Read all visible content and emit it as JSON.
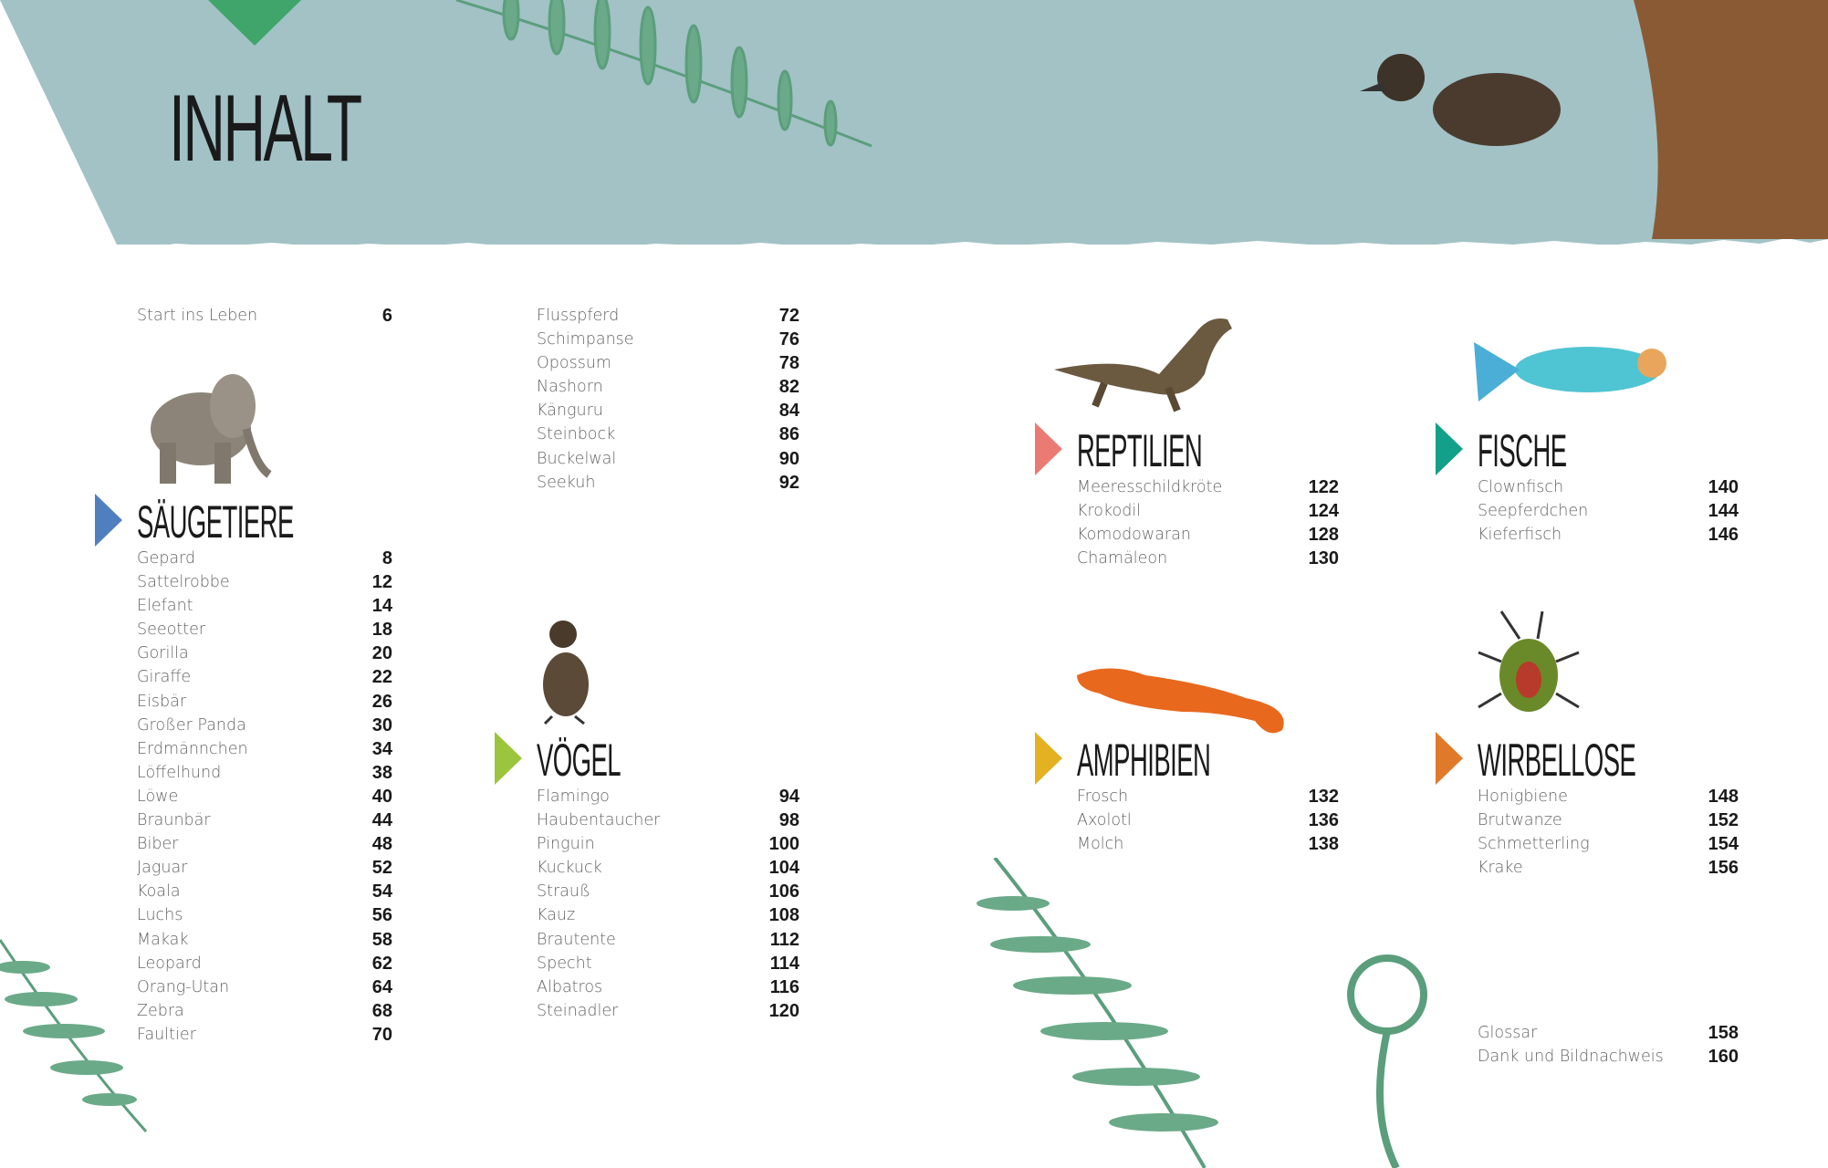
{
  "title": "INHALT",
  "colors": {
    "band": "#a2c2c6",
    "fern": "#5b9e7c",
    "saeugetiere": "#4f7fbf",
    "voegel": "#9bc53d",
    "reptilien": "#ec7a74",
    "fische": "#13a08a",
    "amphibien": "#e4b123",
    "wirbellose": "#e07a2a"
  },
  "intro": [
    {
      "label": "Start ins Leben",
      "page": "6"
    }
  ],
  "sections": {
    "saeugetiere": {
      "heading": "SÄUGETIERE",
      "items": [
        {
          "label": "Gepard",
          "page": "8"
        },
        {
          "label": "Sattelrobbe",
          "page": "12"
        },
        {
          "label": "Elefant",
          "page": "14"
        },
        {
          "label": "Seeotter",
          "page": "18"
        },
        {
          "label": "Gorilla",
          "page": "20"
        },
        {
          "label": "Giraffe",
          "page": "22"
        },
        {
          "label": "Eisbär",
          "page": "26"
        },
        {
          "label": "Großer Panda",
          "page": "30"
        },
        {
          "label": "Erdmännchen",
          "page": "34"
        },
        {
          "label": "Löffelhund",
          "page": "38"
        },
        {
          "label": "Löwe",
          "page": "40"
        },
        {
          "label": "Braunbär",
          "page": "44"
        },
        {
          "label": "Biber",
          "page": "48"
        },
        {
          "label": "Jaguar",
          "page": "52"
        },
        {
          "label": "Koala",
          "page": "54"
        },
        {
          "label": "Luchs",
          "page": "56"
        },
        {
          "label": "Makak",
          "page": "58"
        },
        {
          "label": "Leopard",
          "page": "62"
        },
        {
          "label": "Orang-Utan",
          "page": "64"
        },
        {
          "label": "Zebra",
          "page": "68"
        },
        {
          "label": "Faultier",
          "page": "70"
        }
      ]
    },
    "saeugetiere_cont": {
      "items": [
        {
          "label": "Flusspferd",
          "page": "72"
        },
        {
          "label": "Schimpanse",
          "page": "76"
        },
        {
          "label": "Opossum",
          "page": "78"
        },
        {
          "label": "Nashorn",
          "page": "82"
        },
        {
          "label": "Känguru",
          "page": "84"
        },
        {
          "label": "Steinbock",
          "page": "86"
        },
        {
          "label": "Buckelwal",
          "page": "90"
        },
        {
          "label": "Seekuh",
          "page": "92"
        }
      ]
    },
    "voegel": {
      "heading": "VÖGEL",
      "items": [
        {
          "label": "Flamingo",
          "page": "94"
        },
        {
          "label": "Haubentaucher",
          "page": "98"
        },
        {
          "label": "Pinguin",
          "page": "100"
        },
        {
          "label": "Kuckuck",
          "page": "104"
        },
        {
          "label": "Strauß",
          "page": "106"
        },
        {
          "label": "Kauz",
          "page": "108"
        },
        {
          "label": "Brautente",
          "page": "112"
        },
        {
          "label": "Specht",
          "page": "114"
        },
        {
          "label": "Albatros",
          "page": "116"
        },
        {
          "label": "Steinadler",
          "page": "120"
        }
      ]
    },
    "reptilien": {
      "heading": "REPTILIEN",
      "items": [
        {
          "label": "Meeresschildkröte",
          "page": "122"
        },
        {
          "label": "Krokodil",
          "page": "124"
        },
        {
          "label": "Komodowaran",
          "page": "128"
        },
        {
          "label": "Chamäleon",
          "page": "130"
        }
      ]
    },
    "fische": {
      "heading": "FISCHE",
      "items": [
        {
          "label": "Clownfisch",
          "page": "140"
        },
        {
          "label": "Seepferdchen",
          "page": "144"
        },
        {
          "label": "Kieferfisch",
          "page": "146"
        }
      ]
    },
    "amphibien": {
      "heading": "AMPHIBIEN",
      "items": [
        {
          "label": "Frosch",
          "page": "132"
        },
        {
          "label": "Axolotl",
          "page": "136"
        },
        {
          "label": "Molch",
          "page": "138"
        }
      ]
    },
    "wirbellose": {
      "heading": "WIRBELLOSE",
      "items": [
        {
          "label": "Honigbiene",
          "page": "148"
        },
        {
          "label": "Brutwanze",
          "page": "152"
        },
        {
          "label": "Schmetterling",
          "page": "154"
        },
        {
          "label": "Krake",
          "page": "156"
        }
      ]
    }
  },
  "appendix": [
    {
      "label": "Glossar",
      "page": "158"
    },
    {
      "label": "Dank und Bildnachweis",
      "page": "160"
    }
  ]
}
